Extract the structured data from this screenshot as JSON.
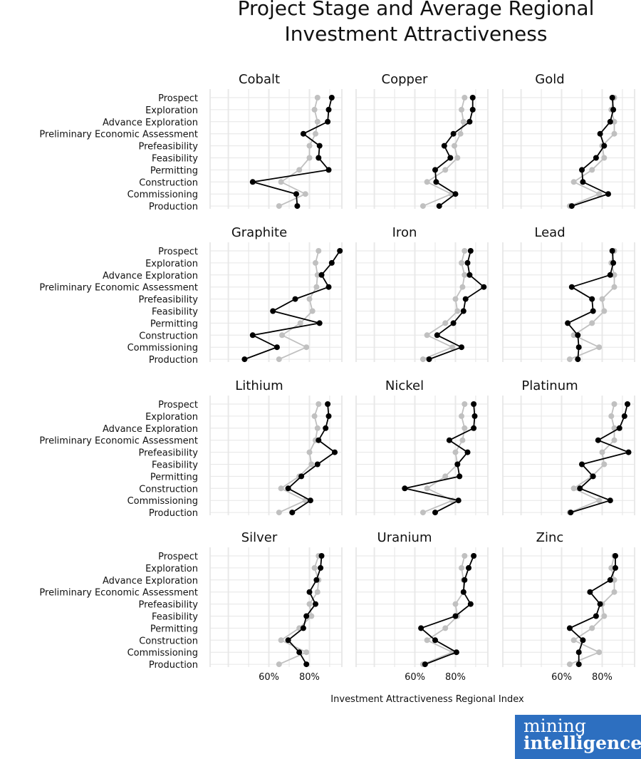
{
  "title_line1": "Project Stage and Average Regional",
  "title_line2": "Investment Attractiveness",
  "x_axis_title": "Investment Attractiveness Regional Index",
  "logo": {
    "line1": "mining",
    "line2": "intelligence"
  },
  "colors": {
    "project": "#000000",
    "regional": "#c0c0c0",
    "logo_bg": "#2d6fc0"
  },
  "chart_data": {
    "type": "line",
    "facets": [
      "Cobalt",
      "Copper",
      "Gold",
      "Graphite",
      "Iron",
      "Lead",
      "Lithium",
      "Nickel",
      "Platinum",
      "Silver",
      "Uranium",
      "Zinc"
    ],
    "stages": [
      "Prospect",
      "Exploration",
      "Advance Exploration",
      "Preliminary Economic Assessment",
      "Prefeasibility",
      "Feasibility",
      "Permitting",
      "Construction",
      "Commissioning",
      "Production"
    ],
    "x_ticks": [
      "60%",
      "80%"
    ],
    "x_tick_values": [
      60,
      80
    ],
    "xlim": [
      31,
      96
    ],
    "series_regional": {
      "Cobalt": [
        84,
        82.5,
        84,
        83,
        80,
        80,
        75,
        66,
        78,
        65
      ],
      "Copper": [
        84.5,
        83,
        84,
        82.5,
        79.5,
        81,
        75,
        66,
        78,
        64
      ],
      "Gold": [
        86,
        84.5,
        86,
        86,
        80,
        81,
        75,
        66,
        78.5,
        64
      ],
      "Graphite": [
        84.5,
        83,
        84,
        83.5,
        80,
        81.5,
        75.5,
        66.5,
        78.5,
        65
      ],
      "Iron": [
        84.5,
        83,
        84.5,
        83.5,
        80,
        81,
        75,
        66,
        78.5,
        64
      ],
      "Lead": [
        86,
        84.5,
        86,
        86,
        80,
        81,
        75,
        66,
        78.5,
        64
      ],
      "Lithium": [
        84.5,
        82.5,
        84,
        83,
        80,
        81,
        75,
        66,
        78,
        65
      ],
      "Nickel": [
        84.5,
        83,
        84.5,
        83.5,
        80,
        81,
        75,
        66,
        78.5,
        64
      ],
      "Platinum": [
        86,
        84.5,
        86,
        86,
        80,
        81,
        75,
        66,
        78.5,
        64
      ],
      "Silver": [
        84.5,
        82.5,
        84.5,
        84,
        80,
        81,
        75,
        66,
        78.5,
        65
      ],
      "Uranium": [
        84.5,
        83,
        84,
        84,
        80,
        81,
        75,
        66,
        78.5,
        64
      ],
      "Zinc": [
        86,
        84.5,
        86,
        86,
        80,
        81,
        75,
        66,
        78.5,
        64
      ]
    },
    "series_project": {
      "Cobalt": [
        91,
        89.5,
        89,
        77,
        85,
        84.5,
        89.5,
        52,
        73.5,
        74
      ],
      "Copper": [
        88.5,
        88.5,
        87,
        79,
        74.5,
        77.5,
        70,
        70.5,
        80,
        72
      ],
      "Gold": [
        85,
        85.5,
        84,
        79,
        81,
        77,
        70,
        70.5,
        83,
        65
      ],
      "Graphite": [
        95,
        91,
        86,
        89.5,
        73,
        62,
        85,
        52,
        64,
        48
      ],
      "Iron": [
        87.5,
        86,
        87,
        94,
        85,
        84,
        79,
        71,
        83,
        67
      ],
      "Lead": [
        85,
        85.5,
        84,
        65,
        75,
        75.5,
        63,
        68,
        68.5,
        68
      ],
      "Lithium": [
        89,
        89.5,
        88,
        84.5,
        92.5,
        84,
        76,
        69.5,
        80.5,
        71.5
      ],
      "Nickel": [
        89,
        89.5,
        89,
        77,
        86,
        81,
        82,
        55,
        81.5,
        70
      ],
      "Platinum": [
        92.5,
        91,
        88.5,
        78,
        93,
        70,
        75.5,
        69,
        84,
        64.5
      ],
      "Silver": [
        86,
        85.5,
        83.5,
        80,
        83,
        78.5,
        77,
        69.5,
        75,
        78.5
      ],
      "Uranium": [
        89,
        86.5,
        84.5,
        84,
        87.5,
        80,
        63,
        70,
        80.5,
        65
      ],
      "Zinc": [
        86.5,
        86.5,
        84,
        74,
        79,
        77,
        64,
        70.5,
        68.5,
        68.5
      ]
    }
  }
}
